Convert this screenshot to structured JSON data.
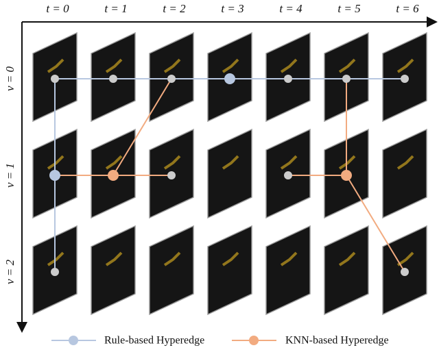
{
  "columns": [
    "t = 0",
    "t = 1",
    "t = 2",
    "t = 3",
    "t = 4",
    "t = 5",
    "t = 6"
  ],
  "rows": [
    "v = 0",
    "v = 1",
    "v = 2"
  ],
  "legend": {
    "rule": "Rule-based Hyperedge",
    "knn": "KNN-based Hyperedge"
  }
}
